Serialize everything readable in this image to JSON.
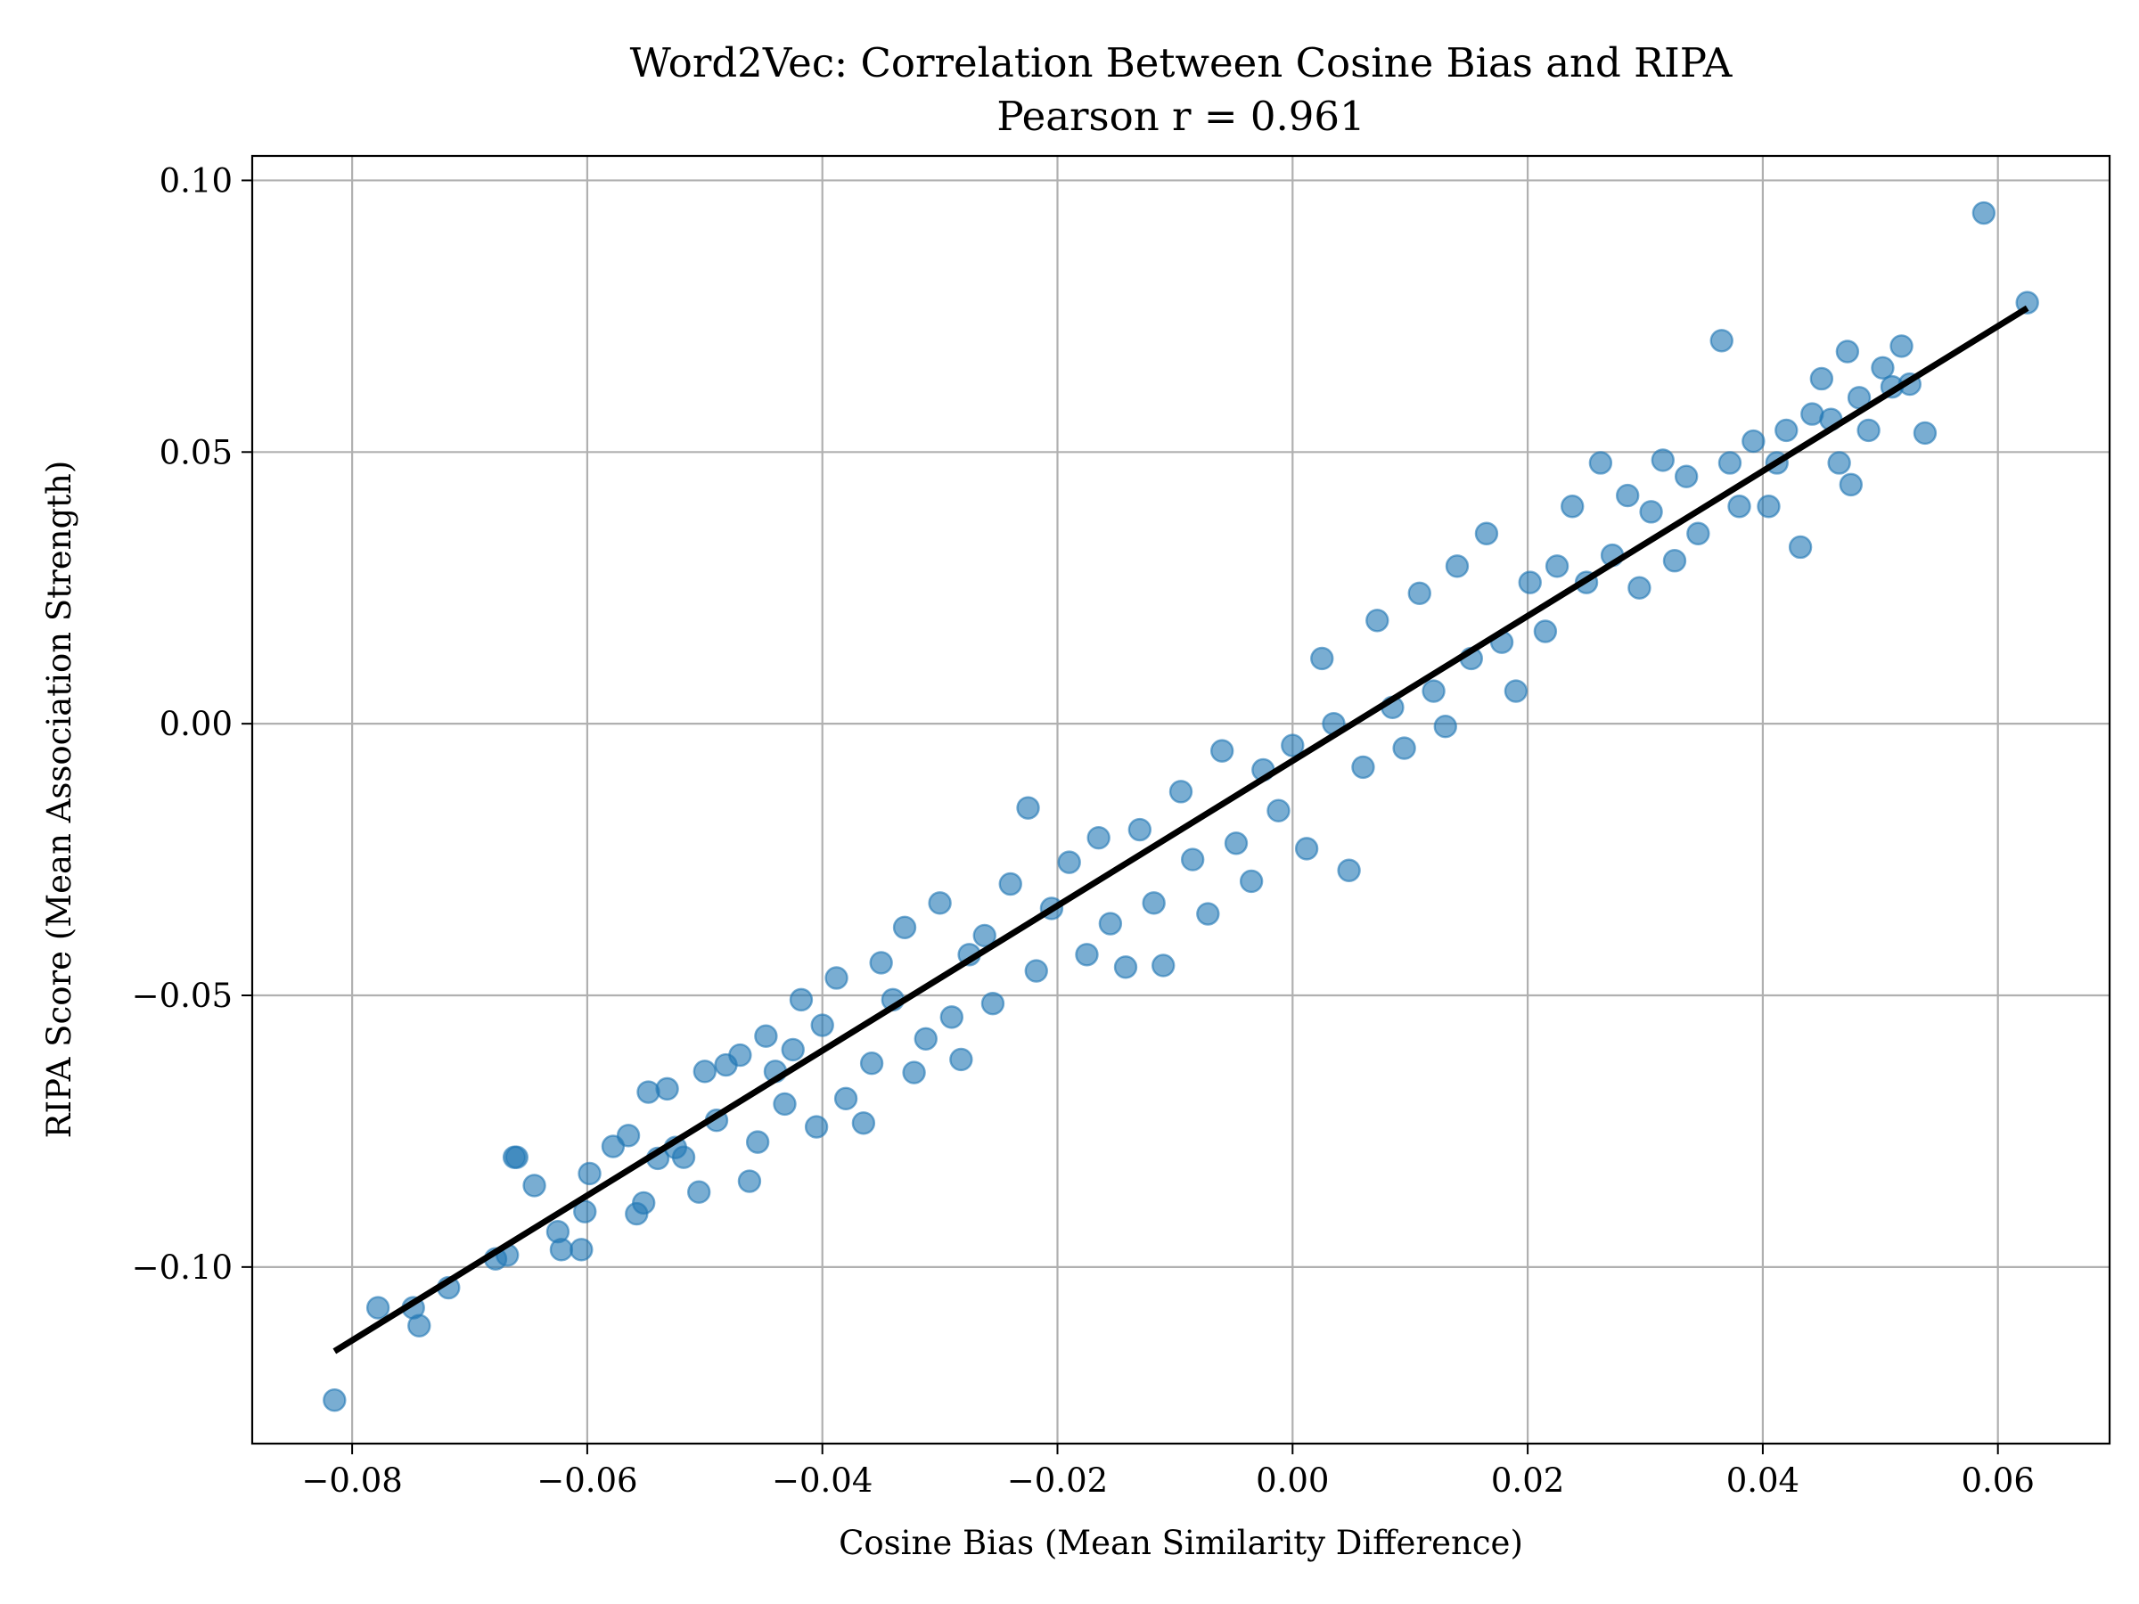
{
  "chart_data": {
    "type": "scatter",
    "title": "Word2Vec: Correlation Between Cosine Bias and RIPA",
    "subtitle": "Pearson r = 0.961",
    "xlabel": "Cosine Bias (Mean Similarity Difference)",
    "ylabel": "RIPA Score (Mean Association Strength)",
    "xlim": [
      -0.0885,
      0.0695
    ],
    "ylim": [
      -0.1325,
      0.1045
    ],
    "xticks": [
      -0.08,
      -0.06,
      -0.04,
      -0.02,
      0.0,
      0.02,
      0.04,
      0.06
    ],
    "xtick_labels": [
      "−0.08",
      "−0.06",
      "−0.04",
      "−0.02",
      "0.00",
      "0.02",
      "0.04",
      "0.06"
    ],
    "yticks": [
      -0.1,
      -0.05,
      0.0,
      0.05,
      0.1
    ],
    "ytick_labels": [
      "−0.10",
      "−0.05",
      "0.00",
      "0.05",
      "0.10"
    ],
    "grid": true,
    "point_color": "#1f77b4",
    "point_alpha": 0.6,
    "fit_line_color": "#000000",
    "fit_line": {
      "x": [
        -0.0815,
        0.0625
      ],
      "y": [
        -0.1155,
        0.0765
      ]
    },
    "points": [
      [
        -0.0815,
        -0.1245
      ],
      [
        -0.0778,
        -0.1075
      ],
      [
        -0.0748,
        -0.1075
      ],
      [
        -0.0743,
        -0.1108
      ],
      [
        -0.0718,
        -0.1038
      ],
      [
        -0.0678,
        -0.0985
      ],
      [
        -0.0668,
        -0.0978
      ],
      [
        -0.0662,
        -0.0798
      ],
      [
        -0.066,
        -0.0798
      ],
      [
        -0.0645,
        -0.085
      ],
      [
        -0.0625,
        -0.0935
      ],
      [
        -0.0622,
        -0.0968
      ],
      [
        -0.0605,
        -0.0968
      ],
      [
        -0.0602,
        -0.0898
      ],
      [
        -0.0598,
        -0.0828
      ],
      [
        -0.0578,
        -0.0778
      ],
      [
        -0.0565,
        -0.0758
      ],
      [
        -0.0558,
        -0.0902
      ],
      [
        -0.0552,
        -0.0882
      ],
      [
        -0.0548,
        -0.0678
      ],
      [
        -0.054,
        -0.08
      ],
      [
        -0.0532,
        -0.0672
      ],
      [
        -0.0525,
        -0.078
      ],
      [
        -0.0518,
        -0.0798
      ],
      [
        -0.0505,
        -0.0862
      ],
      [
        -0.05,
        -0.064
      ],
      [
        -0.049,
        -0.073
      ],
      [
        -0.0482,
        -0.0628
      ],
      [
        -0.047,
        -0.061
      ],
      [
        -0.0462,
        -0.0842
      ],
      [
        -0.0455,
        -0.077
      ],
      [
        -0.0448,
        -0.0575
      ],
      [
        -0.044,
        -0.064
      ],
      [
        -0.0432,
        -0.07
      ],
      [
        -0.0425,
        -0.06
      ],
      [
        -0.0418,
        -0.0508
      ],
      [
        -0.0405,
        -0.0742
      ],
      [
        -0.04,
        -0.0555
      ],
      [
        -0.0388,
        -0.0468
      ],
      [
        -0.038,
        -0.069
      ],
      [
        -0.0365,
        -0.0735
      ],
      [
        -0.0358,
        -0.0625
      ],
      [
        -0.035,
        -0.044
      ],
      [
        -0.034,
        -0.0508
      ],
      [
        -0.033,
        -0.0375
      ],
      [
        -0.0322,
        -0.0642
      ],
      [
        -0.0312,
        -0.058
      ],
      [
        -0.03,
        -0.033
      ],
      [
        -0.029,
        -0.054
      ],
      [
        -0.0282,
        -0.0618
      ],
      [
        -0.0275,
        -0.0425
      ],
      [
        -0.0262,
        -0.039
      ],
      [
        -0.0255,
        -0.0515
      ],
      [
        -0.024,
        -0.0295
      ],
      [
        -0.0225,
        -0.0155
      ],
      [
        -0.0218,
        -0.0455
      ],
      [
        -0.0205,
        -0.034
      ],
      [
        -0.019,
        -0.0255
      ],
      [
        -0.0175,
        -0.0425
      ],
      [
        -0.0165,
        -0.021
      ],
      [
        -0.0155,
        -0.0368
      ],
      [
        -0.0142,
        -0.0448
      ],
      [
        -0.013,
        -0.0195
      ],
      [
        -0.0118,
        -0.033
      ],
      [
        -0.011,
        -0.0445
      ],
      [
        -0.0095,
        -0.0125
      ],
      [
        -0.0085,
        -0.025
      ],
      [
        -0.0072,
        -0.035
      ],
      [
        -0.006,
        -0.005
      ],
      [
        -0.0048,
        -0.022
      ],
      [
        -0.0035,
        -0.029
      ],
      [
        -0.0025,
        -0.0085
      ],
      [
        -0.0012,
        -0.016
      ],
      [
        0.0,
        -0.004
      ],
      [
        0.0012,
        -0.023
      ],
      [
        0.0025,
        0.012
      ],
      [
        0.0035,
        0.0
      ],
      [
        0.0048,
        -0.027
      ],
      [
        0.006,
        -0.008
      ],
      [
        0.0072,
        0.019
      ],
      [
        0.0085,
        0.003
      ],
      [
        0.0095,
        -0.0045
      ],
      [
        0.0108,
        0.024
      ],
      [
        0.012,
        0.006
      ],
      [
        0.013,
        -0.0005
      ],
      [
        0.014,
        0.029
      ],
      [
        0.0152,
        0.012
      ],
      [
        0.0165,
        0.035
      ],
      [
        0.0178,
        0.015
      ],
      [
        0.019,
        0.006
      ],
      [
        0.0202,
        0.026
      ],
      [
        0.0215,
        0.017
      ],
      [
        0.0225,
        0.029
      ],
      [
        0.0238,
        0.04
      ],
      [
        0.025,
        0.026
      ],
      [
        0.0262,
        0.048
      ],
      [
        0.0272,
        0.031
      ],
      [
        0.0285,
        0.042
      ],
      [
        0.0295,
        0.025
      ],
      [
        0.0305,
        0.039
      ],
      [
        0.0315,
        0.0485
      ],
      [
        0.0325,
        0.03
      ],
      [
        0.0335,
        0.0455
      ],
      [
        0.0345,
        0.035
      ],
      [
        0.0365,
        0.0705
      ],
      [
        0.0372,
        0.048
      ],
      [
        0.038,
        0.04
      ],
      [
        0.0392,
        0.052
      ],
      [
        0.0405,
        0.04
      ],
      [
        0.0412,
        0.048
      ],
      [
        0.042,
        0.054
      ],
      [
        0.0432,
        0.0325
      ],
      [
        0.0442,
        0.057
      ],
      [
        0.045,
        0.0635
      ],
      [
        0.0458,
        0.056
      ],
      [
        0.0465,
        0.048
      ],
      [
        0.0472,
        0.0685
      ],
      [
        0.0475,
        0.044
      ],
      [
        0.0482,
        0.06
      ],
      [
        0.049,
        0.054
      ],
      [
        0.0502,
        0.0655
      ],
      [
        0.051,
        0.062
      ],
      [
        0.0518,
        0.0695
      ],
      [
        0.0525,
        0.0625
      ],
      [
        0.0538,
        0.0535
      ],
      [
        0.0588,
        0.094
      ],
      [
        0.0625,
        0.0775
      ]
    ]
  }
}
